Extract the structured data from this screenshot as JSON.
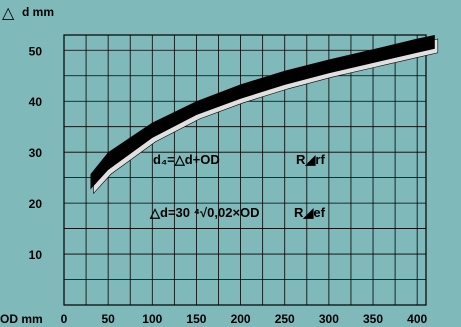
{
  "chart_data": {
    "type": "area",
    "ylabel_symbol": "△",
    "ylabel": "d mm",
    "xlabel": "OD mm",
    "x_ticks": [
      0,
      50,
      100,
      150,
      200,
      250,
      300,
      350,
      400
    ],
    "y_ticks": [
      10,
      20,
      30,
      40,
      50
    ],
    "xlim": [
      0,
      410
    ],
    "ylim": [
      0,
      53
    ],
    "grid": true,
    "band": {
      "x": [
        30,
        50,
        100,
        150,
        200,
        250,
        300,
        350,
        400,
        420
      ],
      "upper": [
        25.7,
        30.0,
        35.8,
        40.0,
        43.3,
        46.0,
        48.2,
        50.2,
        52.3,
        53.0
      ],
      "lower": [
        22.7,
        26.5,
        32.8,
        37.3,
        40.5,
        43.2,
        45.5,
        47.5,
        49.5,
        50.3
      ]
    },
    "annotations": {
      "formula1": "d₄=△d+OD",
      "formula1_tag": "R◢rf",
      "formula2": "△d=30 ⁴√0,02×OD",
      "formula2_tag": "R◢ef"
    },
    "colors": {
      "background": "#7fb9ba",
      "band": "#000000",
      "band_shadow": "#e0e0e0",
      "grid": "#000000"
    }
  }
}
